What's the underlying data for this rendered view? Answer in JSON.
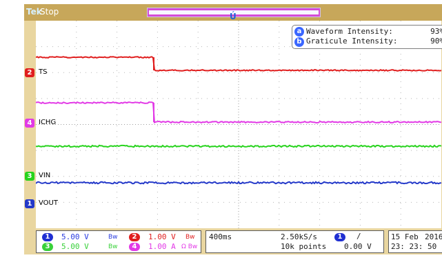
{
  "header": {
    "brand": "Tek",
    "status": "Stop"
  },
  "info_panel": {
    "items": [
      {
        "key": "a",
        "label": "Waveform Intensity:",
        "value": "93%"
      },
      {
        "key": "b",
        "label": "Graticule Intensity:",
        "value": "90%"
      }
    ]
  },
  "channels": [
    {
      "num": "2",
      "label": "TS",
      "color": "#e01e1e"
    },
    {
      "num": "4",
      "label": "ICHG",
      "color": "#e23ae6"
    },
    {
      "num": "3",
      "label": "VIN",
      "color": "#27d31d"
    },
    {
      "num": "1",
      "label": "VOUT",
      "color": "#2439c9"
    }
  ],
  "scales": {
    "ch1": {
      "num": "1",
      "value": "5.00 V",
      "bw": "Bw",
      "color": "#2a3ce0"
    },
    "ch3": {
      "num": "3",
      "value": "5.00 V",
      "bw": "Bw",
      "color": "#39d13a"
    },
    "ch2": {
      "num": "2",
      "value": "1.00 V",
      "bw": "Bw",
      "color": "#e01e1e"
    },
    "ch4": {
      "num": "4",
      "value": "1.00 A",
      "bw": "Ω Bw",
      "color": "#e23ae6"
    }
  },
  "timebase": {
    "time_div": "400ms",
    "sample_rate": "2.50kS/s",
    "record_length": "10k points"
  },
  "trigger": {
    "source": "1",
    "slope": "/",
    "level": "0.00 V"
  },
  "datetime": {
    "date": "15 Feb",
    "year": "2016",
    "time": "23: 23: 50"
  },
  "colors": {
    "frame": "#e9d6a0",
    "topbar": "#c7a75a",
    "grid_dots": "#b5b5b5"
  }
}
